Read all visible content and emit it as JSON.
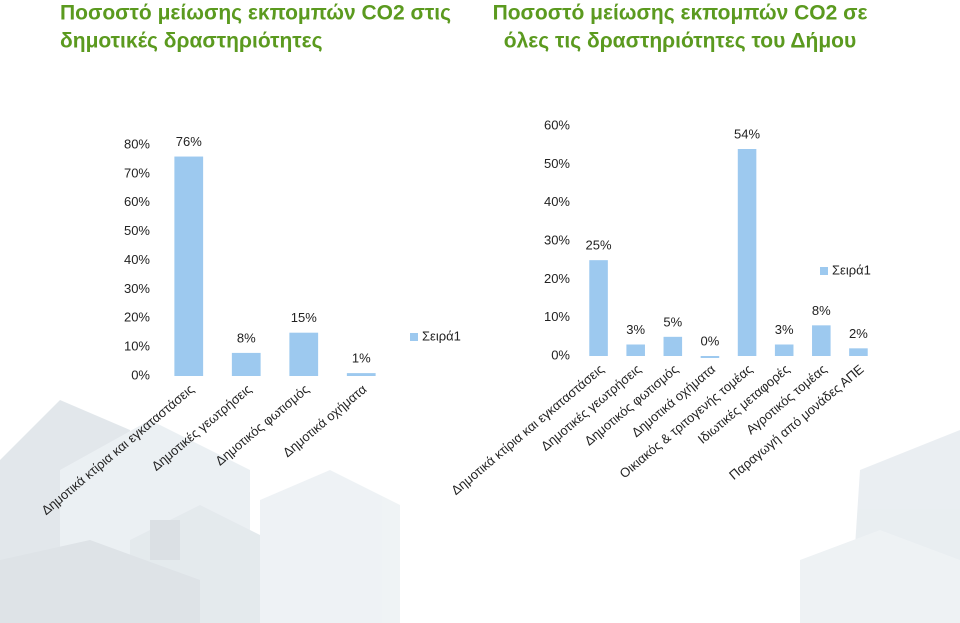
{
  "chart_data": [
    {
      "type": "bar",
      "title": [
        "Ποσοστό μείωσης εκπομπών CO2 στις",
        "δημοτικές δραστηριότητες"
      ],
      "categories": [
        "Δημοτικά κτίρια και εγκαταστάσεις",
        "Δημοτικές γεωτρήσεις",
        "Δημοτικός φωτισμός",
        "Δημοτικά οχήματα"
      ],
      "series": [
        {
          "name": "Σειρά1",
          "color": "#9dc9ef",
          "values": [
            76,
            8,
            15,
            1
          ],
          "value_labels": [
            "76%",
            "8%",
            "15%",
            "1%"
          ]
        }
      ],
      "ylim": [
        0,
        80
      ],
      "yticks": [
        {
          "value": 0,
          "label": "0%"
        },
        {
          "value": 10,
          "label": "10%"
        },
        {
          "value": 20,
          "label": "20%"
        },
        {
          "value": 30,
          "label": "30%"
        },
        {
          "value": 40,
          "label": "40%"
        },
        {
          "value": 50,
          "label": "50%"
        },
        {
          "value": 60,
          "label": "60%"
        },
        {
          "value": 70,
          "label": "70%"
        },
        {
          "value": 80,
          "label": "80%"
        }
      ],
      "legend": "right"
    },
    {
      "type": "bar",
      "title": [
        "Ποσοστό μείωσης εκπομπών CO2 σε",
        "όλες τις δραστηριότητες του Δήμου"
      ],
      "categories": [
        "Δημοτικά κτίρια και εγκαταστάσεις",
        "Δημοτικές γεωτρήσεις",
        "Δημοτικός φωτισμός",
        "Δημοτικά οχήματα",
        "Οικιακός & τριτογενής τομέας",
        "Ιδιωτικές μεταφορές",
        "Αγροτικός τομέας",
        "Παραγωγή από μονάδες ΑΠΕ"
      ],
      "series": [
        {
          "name": "Σειρά1",
          "color": "#9dc9ef",
          "values": [
            25,
            3,
            5,
            0,
            54,
            3,
            8,
            2
          ],
          "value_labels": [
            "25%",
            "3%",
            "5%",
            "0%",
            "54%",
            "3%",
            "8%",
            "2%"
          ]
        }
      ],
      "ylim": [
        0,
        60
      ],
      "yticks": [
        {
          "value": 0,
          "label": "0%"
        },
        {
          "value": 10,
          "label": "10%"
        },
        {
          "value": 20,
          "label": "20%"
        },
        {
          "value": 30,
          "label": "30%"
        },
        {
          "value": 40,
          "label": "40%"
        },
        {
          "value": 50,
          "label": "50%"
        },
        {
          "value": 60,
          "label": "60%"
        }
      ],
      "legend": "right"
    }
  ]
}
